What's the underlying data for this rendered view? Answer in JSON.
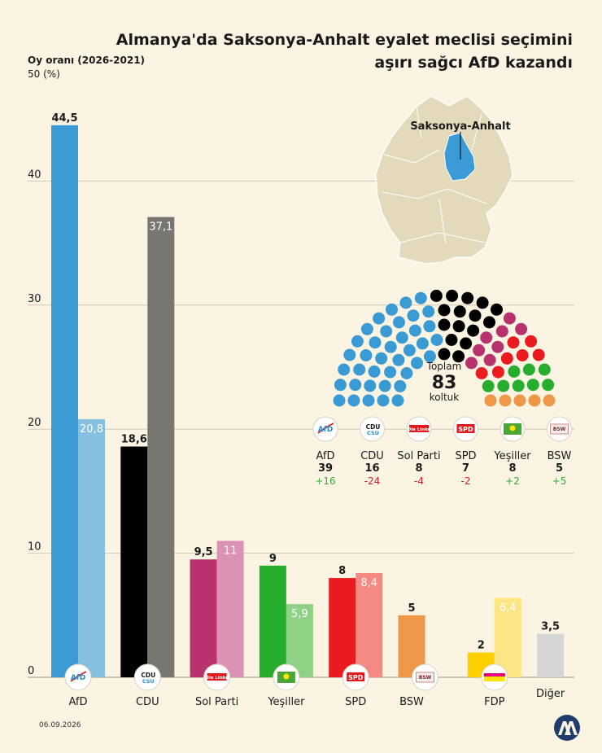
{
  "title_line1": "Almanya'da Saksonya-Anhalt eyalet meclisi seçimini",
  "title_line2": "aşırı sağcı AfD kazandı",
  "date": "06.09.2026",
  "colors": {
    "background": "#fbf4e2",
    "grid": "#cfc8b6",
    "map": "#e3dabb",
    "highlight": "#3b9bd6"
  },
  "chart_data": {
    "type": "bar",
    "ylabel": "Oy oranı (2026-2021)",
    "yunit": "50 (%)",
    "ylim": [
      0,
      50
    ],
    "yticks": [
      0,
      10,
      20,
      30,
      40
    ],
    "series_labels": [
      "2026",
      "2021"
    ],
    "bars": [
      {
        "name": "AfD",
        "value_2026": 44.5,
        "label_2026": "44,5",
        "value_2021": 20.8,
        "label_2021": "20,8",
        "color_2026": "#3a9ad4",
        "color_2021": "#86c0e0",
        "logo": "AfD"
      },
      {
        "name": "CDU",
        "value_2026": 18.6,
        "label_2026": "18,6",
        "value_2021": 37.1,
        "label_2021": "37,1",
        "color_2026": "#000000",
        "color_2021": "#787670",
        "logo": "CDU"
      },
      {
        "name": "Sol Parti",
        "value_2026": 9.5,
        "label_2026": "9,5",
        "value_2021": 11,
        "label_2021": "11",
        "color_2026": "#b8336d",
        "color_2021": "#dc92b4",
        "logo": "Die Linke"
      },
      {
        "name": "Yeşiller",
        "value_2026": 9,
        "label_2026": "9",
        "value_2021": 5.9,
        "label_2021": "5,9",
        "color_2026": "#27ad2d",
        "color_2021": "#8ed385",
        "logo": "Grüne"
      },
      {
        "name": "SPD",
        "value_2026": 8,
        "label_2026": "8",
        "value_2021": 8.4,
        "label_2021": "8,4",
        "color_2026": "#ea1a1e",
        "color_2021": "#f48a81",
        "logo": "SPD"
      },
      {
        "name": "BSW",
        "value_2026": 5,
        "label_2026": "5",
        "value_2021": null,
        "label_2021": "",
        "color_2026": "#ec9848",
        "color_2021": "",
        "logo": "BSW"
      },
      {
        "name": "FDP",
        "value_2026": 2,
        "label_2026": "2",
        "value_2021": 6.4,
        "label_2021": "6,4",
        "color_2026": "#fdd000",
        "color_2021": "#fde583",
        "logo": "Freie Demokraten"
      },
      {
        "name": "Diğer",
        "value_2026": 3.5,
        "label_2026": "3,5",
        "value_2021": null,
        "label_2021": "",
        "color_2026": "#d5d5d5",
        "color_2021": "",
        "logo": ""
      }
    ],
    "map_label": "Saksonya-Anhalt",
    "seats": {
      "total_label": "Toplam",
      "total": 83,
      "unit": "koltuk",
      "parties": [
        {
          "name": "AfD",
          "seats": 39,
          "change": "+16",
          "color": "#3a9ad4",
          "change_color": "#3aa83a",
          "logo": "AfD"
        },
        {
          "name": "CDU",
          "seats": 16,
          "change": "-24",
          "color": "#000000",
          "change_color": "#d0202a",
          "logo": "CDU"
        },
        {
          "name": "Sol Parti",
          "seats": 8,
          "change": "-4",
          "color": "#b8336d",
          "change_color": "#d0202a",
          "logo": "Die Linke"
        },
        {
          "name": "SPD",
          "seats": 7,
          "change": "-2",
          "color": "#ea1a1e",
          "change_color": "#d0202a",
          "logo": "SPD"
        },
        {
          "name": "Yeşiller",
          "seats": 8,
          "change": "+2",
          "color": "#27ad2d",
          "change_color": "#3aa83a",
          "logo": "Grüne"
        },
        {
          "name": "BSW",
          "seats": 5,
          "change": "+5",
          "color": "#ec9848",
          "change_color": "#3aa83a",
          "logo": "BSW"
        }
      ]
    }
  }
}
